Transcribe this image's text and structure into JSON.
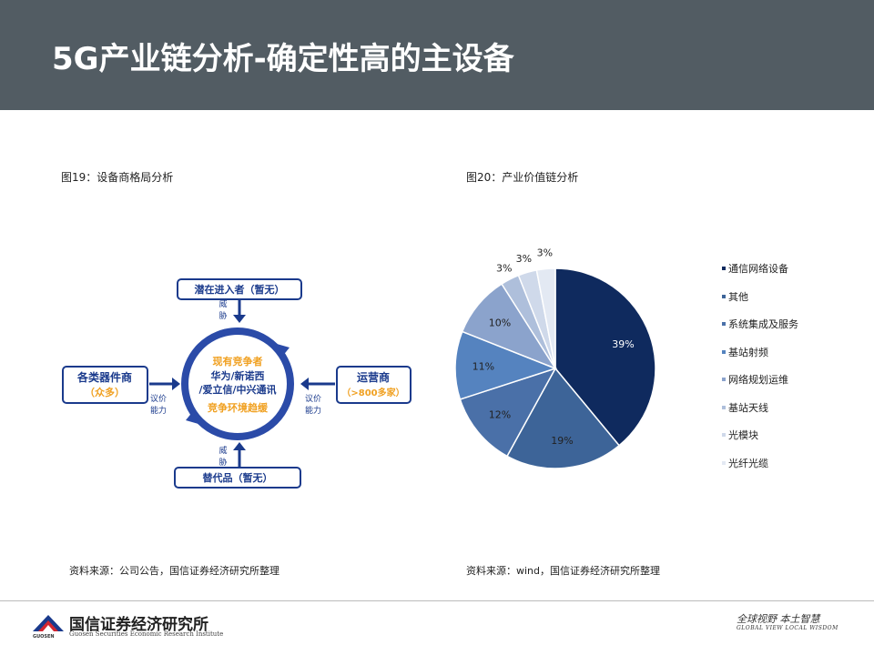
{
  "page": {
    "title": "5G产业链分析-确定性高的主设备"
  },
  "figure19": {
    "caption": "图19：设备商格局分析",
    "source": "资料来源：公司公告，国信证券经济研究所整理",
    "top_box": "潜在进入者（暂无）",
    "top_arrow_label_1": "威",
    "top_arrow_label_2": "胁",
    "bottom_box": "替代品（暂无）",
    "bottom_arrow_label_1": "威",
    "bottom_arrow_label_2": "胁",
    "left_box_title": "各类器件商",
    "left_box_sub": "（众多）",
    "left_arrow_label_1": "议价",
    "left_arrow_label_2": "能力",
    "right_box_title": "运营商",
    "right_box_sub": "（>800多家）",
    "right_arrow_label_1": "议价",
    "right_arrow_label_2": "能力",
    "center_line1": "现有竞争者",
    "center_line2": "华为/新诺西",
    "center_line3": "/爱立信/中兴通讯",
    "center_line4": "竞争环境趋缓",
    "colors": {
      "navy": "#1a3a8c",
      "orange": "#f0a020",
      "ring": "#2b4ba8"
    }
  },
  "figure20": {
    "caption": "图20：产业价值链分析",
    "source": "资料来源：wind，国信证券经济研究所整理"
  },
  "chart_data": {
    "type": "pie",
    "title": "",
    "start_angle_deg": 0,
    "direction": "clockwise",
    "slices": [
      {
        "label": "通信网络设备",
        "value": 39,
        "display": "39%",
        "color": "#0f2a5e"
      },
      {
        "label": "其他",
        "value": 19,
        "display": "19%",
        "color": "#3d6498"
      },
      {
        "label": "系统集成及服务",
        "value": 12,
        "display": "12%",
        "color": "#4a70a8"
      },
      {
        "label": "基站射频",
        "value": 11,
        "display": "11%",
        "color": "#5583bf"
      },
      {
        "label": "网络规划运维",
        "value": 10,
        "display": "10%",
        "color": "#8ba3cc"
      },
      {
        "label": "基站天线",
        "value": 3,
        "display": "3%",
        "color": "#aebfdb"
      },
      {
        "label": "光模块",
        "value": 3,
        "display": "3%",
        "color": "#cfd9ea"
      },
      {
        "label": "光纤光缆",
        "value": 3,
        "display": "3%",
        "color": "#e3e9f3"
      }
    ],
    "legend_position": "right"
  },
  "footer": {
    "company_cn": "国信证券经济研究所",
    "company_en": "Guosen Securities Economic Research Institute",
    "logo_small": "GUOSEN",
    "slogan_cn": "全球视野  本土智慧",
    "slogan_en": "GLOBAL VIEW   LOCAL WISDOM"
  }
}
